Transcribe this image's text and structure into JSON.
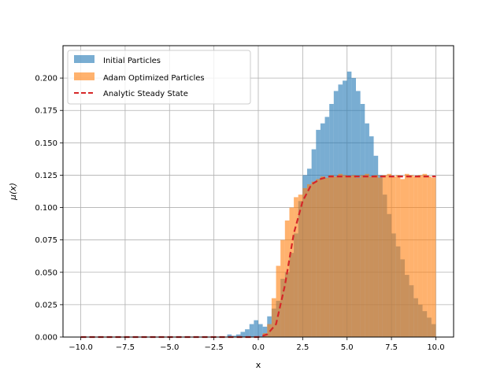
{
  "chart_data": {
    "type": "bar",
    "title": "",
    "xlabel": "x",
    "ylabel": "μ(x)",
    "xlim": [
      -11.0,
      11.0
    ],
    "ylim": [
      0.0,
      0.225
    ],
    "grid": true,
    "legend_position": "top-left",
    "xticks": [
      "−10.0",
      "−7.5",
      "−5.0",
      "−2.5",
      "0.0",
      "2.5",
      "5.0",
      "7.5",
      "10.0"
    ],
    "xtick_values": [
      -10.0,
      -7.5,
      -5.0,
      -2.5,
      0.0,
      2.5,
      5.0,
      7.5,
      10.0
    ],
    "yticks": [
      "0.000",
      "0.025",
      "0.050",
      "0.075",
      "0.100",
      "0.125",
      "0.150",
      "0.175",
      "0.200"
    ],
    "ytick_values": [
      0.0,
      0.025,
      0.05,
      0.075,
      0.1,
      0.125,
      0.15,
      0.175,
      0.2
    ],
    "bin_edges": [
      -1.75,
      -1.5,
      -1.25,
      -1.0,
      -0.75,
      -0.5,
      -0.25,
      0.0,
      0.25,
      0.5,
      0.75,
      1.0,
      1.25,
      1.5,
      1.75,
      2.0,
      2.25,
      2.5,
      2.75,
      3.0,
      3.25,
      3.5,
      3.75,
      4.0,
      4.25,
      4.5,
      4.75,
      5.0,
      5.25,
      5.5,
      5.75,
      6.0,
      6.25,
      6.5,
      6.75,
      7.0,
      7.25,
      7.5,
      7.75,
      8.0,
      8.25,
      8.5,
      8.75,
      9.0,
      9.25,
      9.5,
      9.75,
      10.0
    ],
    "series": [
      {
        "name": "Initial Particles",
        "kind": "histogram",
        "color": "#1f77b4",
        "values": [
          0.002,
          0.001,
          0.002,
          0.004,
          0.006,
          0.01,
          0.013,
          0.01,
          0.008,
          0.016,
          0.022,
          0.028,
          0.045,
          0.05,
          0.065,
          0.08,
          0.105,
          0.125,
          0.13,
          0.145,
          0.16,
          0.165,
          0.17,
          0.18,
          0.19,
          0.195,
          0.198,
          0.205,
          0.2,
          0.19,
          0.18,
          0.165,
          0.155,
          0.14,
          0.125,
          0.11,
          0.095,
          0.08,
          0.07,
          0.06,
          0.048,
          0.04,
          0.03,
          0.025,
          0.02,
          0.015,
          0.01
        ]
      },
      {
        "name": "Adam Optimized Particles",
        "kind": "histogram",
        "color": "#ff7f0e",
        "values": [
          0.0,
          0.0,
          0.0,
          0.0,
          0.0,
          0.0,
          0.0,
          0.0,
          0.003,
          0.01,
          0.03,
          0.055,
          0.075,
          0.09,
          0.1,
          0.108,
          0.11,
          0.115,
          0.118,
          0.12,
          0.122,
          0.124,
          0.123,
          0.125,
          0.124,
          0.126,
          0.125,
          0.124,
          0.125,
          0.123,
          0.125,
          0.126,
          0.124,
          0.125,
          0.123,
          0.125,
          0.126,
          0.124,
          0.125,
          0.122,
          0.126,
          0.125,
          0.124,
          0.125,
          0.126,
          0.124,
          0.123
        ]
      },
      {
        "name": "Analytic Steady State",
        "kind": "line",
        "color": "#d62728",
        "x": [
          -10.0,
          0.0,
          0.5,
          1.0,
          1.5,
          2.0,
          2.5,
          3.0,
          3.5,
          4.0,
          5.0,
          6.0,
          7.0,
          8.0,
          9.0,
          10.0
        ],
        "y": [
          0.0,
          0.0,
          0.002,
          0.01,
          0.04,
          0.08,
          0.105,
          0.118,
          0.122,
          0.124,
          0.124,
          0.124,
          0.124,
          0.124,
          0.124,
          0.124
        ]
      }
    ]
  }
}
